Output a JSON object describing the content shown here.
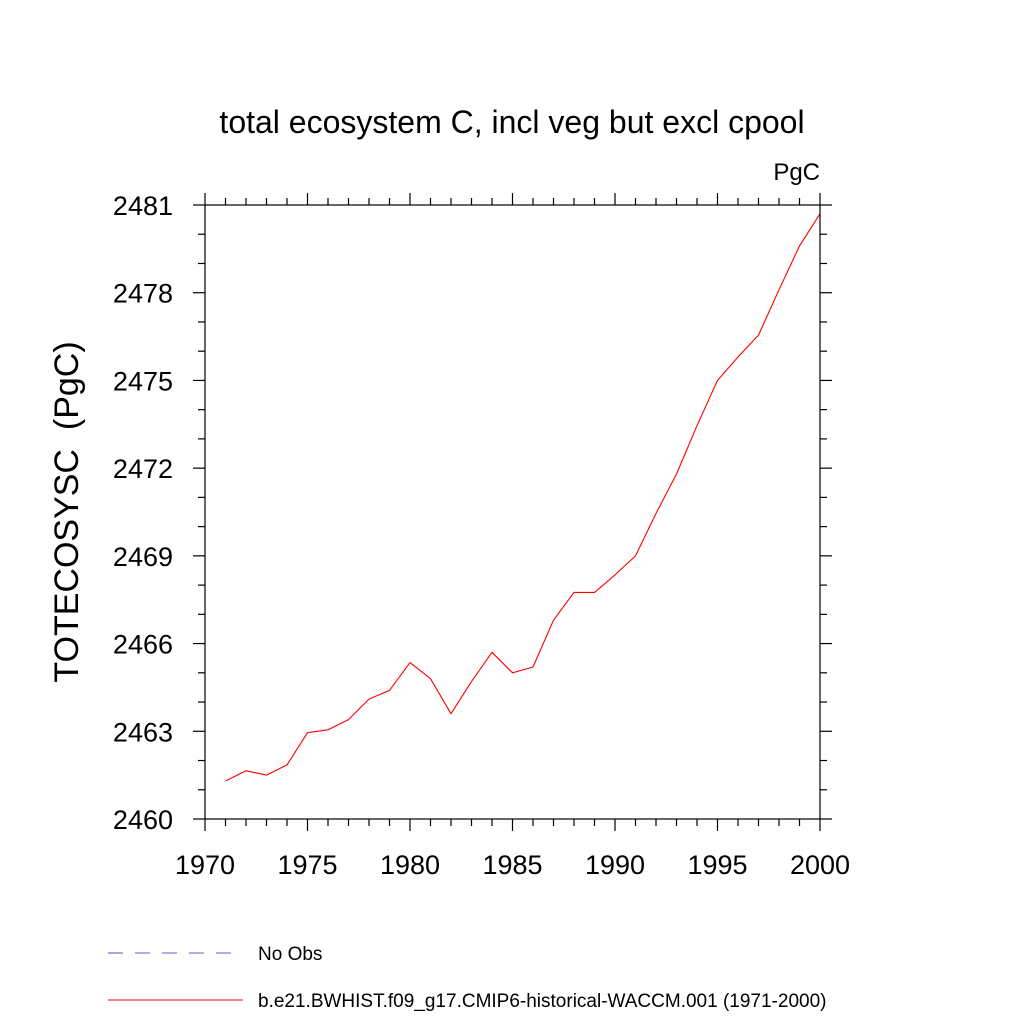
{
  "chart_data": {
    "type": "line",
    "title": "total ecosystem C, incl veg but excl cpool",
    "units_label": "PgC",
    "ylabel": "TOTECOSYSC  (PgC)",
    "xlabel": "",
    "xlim": [
      1970,
      2000
    ],
    "ylim": [
      2460,
      2481
    ],
    "x_ticks": [
      1970,
      1975,
      1980,
      1985,
      1990,
      1995,
      2000
    ],
    "x_tick_labels": [
      "1970",
      "1975",
      "1980",
      "1985",
      "1990",
      "1995",
      "2000"
    ],
    "x_minor_step": 1,
    "y_ticks": [
      2460,
      2463,
      2466,
      2469,
      2472,
      2475,
      2478,
      2481
    ],
    "y_tick_labels": [
      "2460",
      "2463",
      "2466",
      "2469",
      "2472",
      "2475",
      "2478",
      "2481"
    ],
    "y_minor_step": 1,
    "grid": false,
    "series": [
      {
        "name": "b.e21.BWHIST.f09_g17.CMIP6-historical-WACCM.001 (1971-2000)",
        "color": "#ff0000",
        "dash": "solid",
        "x": [
          1971,
          1972,
          1973,
          1974,
          1975,
          1976,
          1977,
          1978,
          1979,
          1980,
          1981,
          1982,
          1983,
          1984,
          1985,
          1986,
          1987,
          1988,
          1989,
          1990,
          1991,
          1992,
          1993,
          1994,
          1995,
          1996,
          1997,
          1998,
          1999,
          2000
        ],
        "y": [
          2461.3,
          2461.65,
          2461.5,
          2461.85,
          2462.95,
          2463.05,
          2463.4,
          2464.1,
          2464.4,
          2465.35,
          2464.8,
          2463.6,
          2464.7,
          2465.7,
          2465.0,
          2465.2,
          2466.8,
          2467.75,
          2467.75,
          2468.35,
          2469.0,
          2470.45,
          2471.8,
          2473.45,
          2475.0,
          2475.8,
          2476.55,
          2478.1,
          2479.6,
          2480.7
        ]
      }
    ],
    "legend": {
      "placement": "bottom",
      "entries": [
        {
          "label": "No Obs",
          "color": "#6a5acd",
          "dash": "dashed"
        },
        {
          "label": "b.e21.BWHIST.f09_g17.CMIP6-historical-WACCM.001 (1971-2000)",
          "color": "#ff0000",
          "dash": "solid"
        }
      ]
    }
  }
}
